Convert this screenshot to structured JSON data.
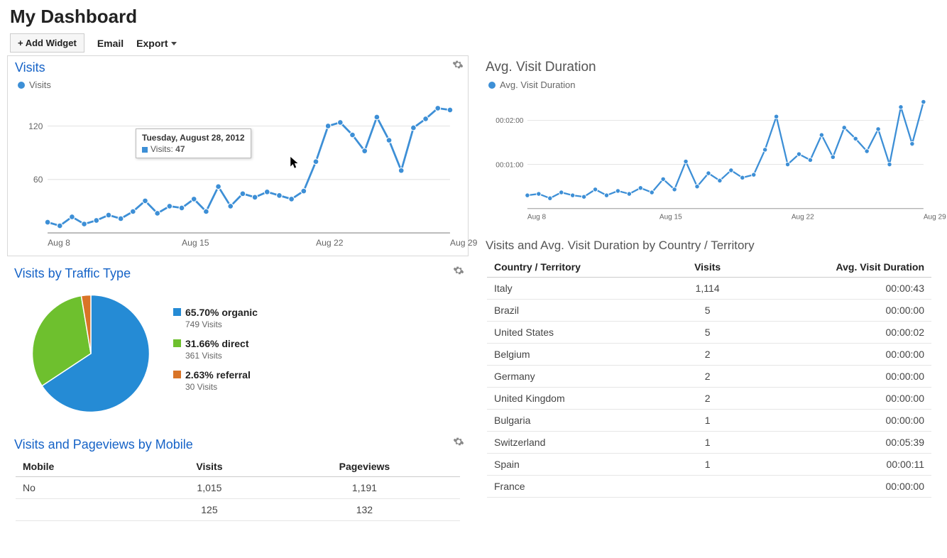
{
  "header": {
    "title": "My Dashboard",
    "add_widget": "+ Add Widget",
    "email": "Email",
    "export": "Export"
  },
  "visits_chart": {
    "title": "Visits",
    "legend": "Visits",
    "type": "line",
    "line_color": "#3d8fd6",
    "point_color": "#3d8fd6",
    "grid_color": "#e2e2e2",
    "axis_color": "#888888",
    "y_ticks": [
      60,
      120
    ],
    "x_labels": [
      "Aug 8",
      "Aug 15",
      "Aug 22",
      "Aug 29"
    ],
    "values": [
      12,
      8,
      18,
      10,
      14,
      20,
      16,
      24,
      36,
      22,
      30,
      28,
      38,
      24,
      52,
      30,
      44,
      40,
      46,
      42,
      38,
      47,
      80,
      120,
      124,
      110,
      92,
      130,
      104,
      70,
      118,
      128,
      140,
      138
    ],
    "tooltip": {
      "title": "Tuesday, August 28, 2012",
      "series_label": "Visits:",
      "value": "47",
      "marker_color": "#3d8fd6"
    }
  },
  "duration_chart": {
    "title": "Avg. Visit Duration",
    "legend": "Avg. Visit Duration",
    "type": "line",
    "line_color": "#3d8fd6",
    "point_color": "#3d8fd6",
    "y_ticks": [
      "00:01:00",
      "00:02:00"
    ],
    "x_labels": [
      "Aug 8",
      "Aug 15",
      "Aug 22",
      "Aug 29"
    ],
    "values": [
      18,
      20,
      14,
      22,
      18,
      16,
      26,
      18,
      24,
      20,
      28,
      22,
      40,
      26,
      64,
      30,
      48,
      38,
      52,
      42,
      46,
      80,
      125,
      60,
      74,
      66,
      100,
      70,
      110,
      95,
      78,
      108,
      60,
      138,
      88,
      145
    ]
  },
  "traffic_type": {
    "title": "Visits by Traffic Type",
    "type": "pie",
    "slices": [
      {
        "label": "organic",
        "pct": "65.70%",
        "sub": "749 Visits",
        "color": "#258bd5"
      },
      {
        "label": "direct",
        "pct": "31.66%",
        "sub": "361 Visits",
        "color": "#6ec02e"
      },
      {
        "label": "referral",
        "pct": "2.63%",
        "sub": "30 Visits",
        "color": "#d97427"
      }
    ]
  },
  "mobile_table": {
    "title": "Visits and Pageviews by Mobile",
    "columns": [
      "Mobile",
      "Visits",
      "Pageviews"
    ],
    "rows": [
      {
        "label": "No",
        "visits": "1,015",
        "pageviews": "1,191"
      },
      {
        "label": "",
        "visits": "125",
        "pageviews": "132"
      }
    ]
  },
  "country_table": {
    "title": "Visits and Avg. Visit Duration by Country / Territory",
    "columns": [
      "Country / Territory",
      "Visits",
      "Avg. Visit Duration"
    ],
    "rows": [
      {
        "c": "Italy",
        "v": "1,114",
        "d": "00:00:43"
      },
      {
        "c": "Brazil",
        "v": "5",
        "d": "00:00:00"
      },
      {
        "c": "United States",
        "v": "5",
        "d": "00:00:02"
      },
      {
        "c": "Belgium",
        "v": "2",
        "d": "00:00:00"
      },
      {
        "c": "Germany",
        "v": "2",
        "d": "00:00:00"
      },
      {
        "c": "United Kingdom",
        "v": "2",
        "d": "00:00:00"
      },
      {
        "c": "Bulgaria",
        "v": "1",
        "d": "00:00:00"
      },
      {
        "c": "Switzerland",
        "v": "1",
        "d": "00:05:39"
      },
      {
        "c": "Spain",
        "v": "1",
        "d": "00:00:11"
      },
      {
        "c": "France",
        "v": "",
        "d": "00:00:00"
      }
    ]
  }
}
